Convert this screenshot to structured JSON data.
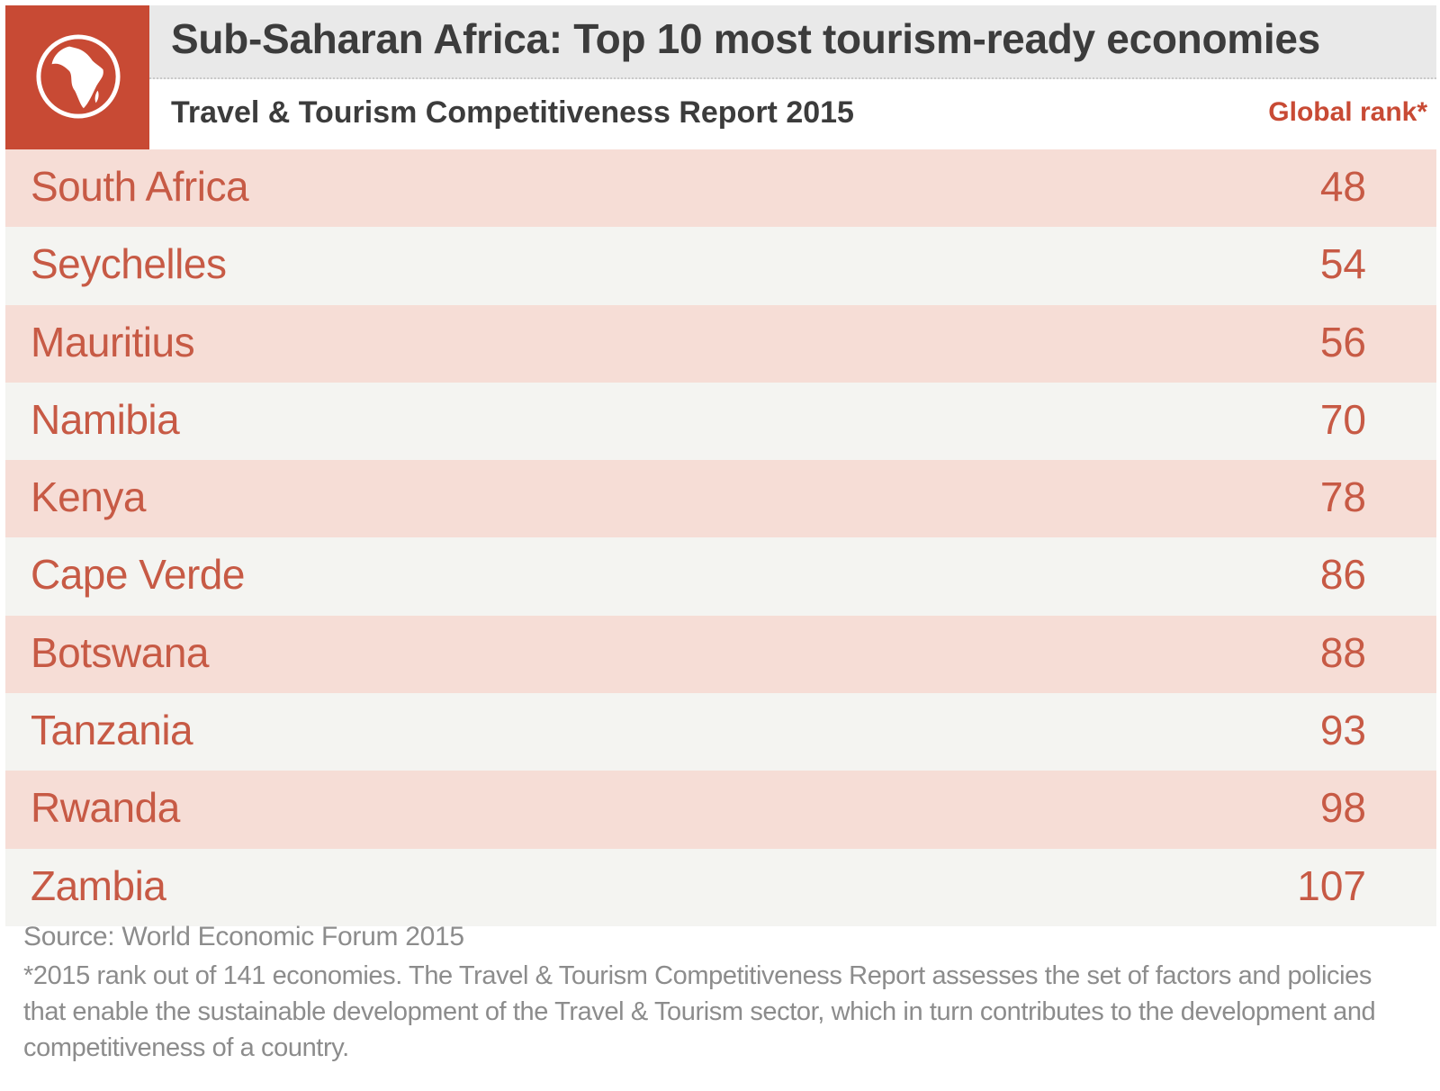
{
  "header": {
    "title": "Sub-Saharan Africa: Top 10 most tourism-ready economies",
    "subtitle": "Travel & Tourism Competitiveness Report 2015",
    "rank_label": "Global rank*",
    "logo_icon": "globe-africa-icon"
  },
  "colors": {
    "accent": "#c84a34",
    "row_highlight": "#f6ddd6",
    "row_alt": "#f4f4f1",
    "text_red": "#c75a45"
  },
  "chart_data": {
    "type": "table",
    "title": "Sub-Saharan Africa: Top 10 most tourism-ready economies",
    "subtitle": "Travel & Tourism Competitiveness Report 2015",
    "columns": [
      "",
      "Global rank*"
    ],
    "rows": [
      {
        "country": "South Africa",
        "rank": "48"
      },
      {
        "country": "Seychelles",
        "rank": "54"
      },
      {
        "country": "Mauritius",
        "rank": "56"
      },
      {
        "country": "Namibia",
        "rank": "70"
      },
      {
        "country": "Kenya",
        "rank": "78"
      },
      {
        "country": "Cape Verde",
        "rank": "86"
      },
      {
        "country": "Botswana",
        "rank": "88"
      },
      {
        "country": "Tanzania",
        "rank": "93"
      },
      {
        "country": "Rwanda",
        "rank": "98"
      },
      {
        "country": "Zambia",
        "rank": "107"
      }
    ]
  },
  "footer": {
    "source": "Source: World Economic Forum 2015",
    "note": "*2015 rank out of 141 economies. The Travel & Tourism Competitiveness Report assesses the set of factors and policies that enable the sustainable development of the Travel & Tourism sector, which in turn contributes to the development and competitiveness of a country."
  }
}
